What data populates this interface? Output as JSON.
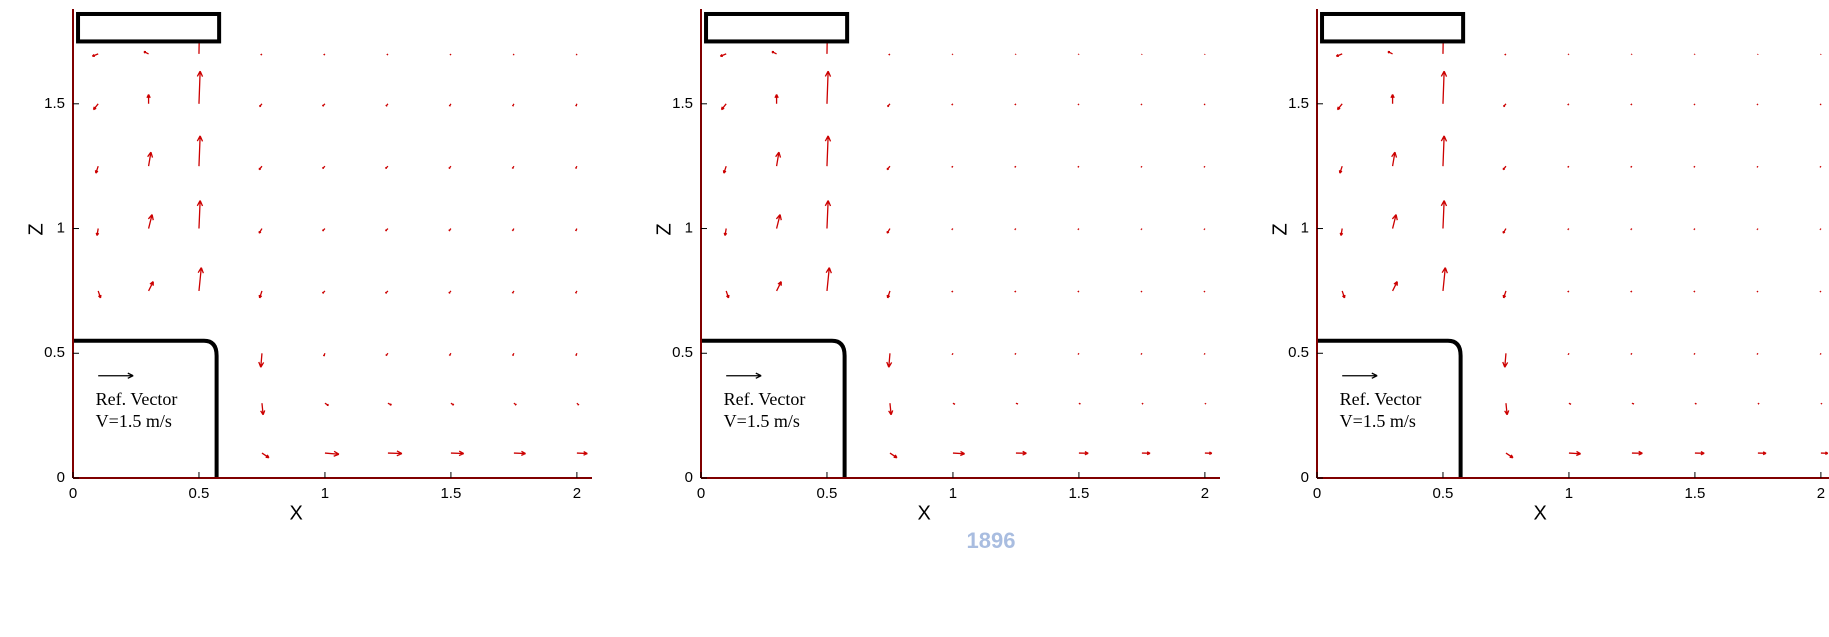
{
  "watermark": "1896",
  "chart_data": [
    {
      "type": "vector",
      "xlabel": "X",
      "ylabel": "Z",
      "color": "#cc0000",
      "xlim": [
        0,
        2.06
      ],
      "ylim": [
        0,
        1.88
      ],
      "xticks": [
        0,
        0.5,
        1,
        1.5,
        2
      ],
      "yticks": [
        0,
        0.5,
        1,
        1.5
      ],
      "annotations": [
        "Ref. Vector",
        "V=1.5 m/s"
      ],
      "ref_value": 1.5,
      "x": [
        0.1,
        0.3,
        0.5,
        0.75,
        1.0,
        1.25,
        1.5,
        1.75,
        2.0
      ],
      "z": [
        0.1,
        0.3,
        0.5,
        0.75,
        1.0,
        1.25,
        1.5,
        1.7
      ],
      "u": [
        [
          null,
          null,
          null,
          0.3,
          0.6,
          0.6,
          0.55,
          0.5,
          0.45
        ],
        [
          null,
          null,
          null,
          0.05,
          0.15,
          0.15,
          0.12,
          0.1,
          0.08
        ],
        [
          null,
          null,
          null,
          -0.05,
          -0.05,
          -0.08,
          -0.06,
          -0.05,
          -0.04
        ],
        [
          0.1,
          0.2,
          0.1,
          -0.1,
          -0.1,
          -0.1,
          -0.08,
          -0.06,
          -0.05
        ],
        [
          -0.05,
          0.15,
          0.05,
          -0.12,
          -0.1,
          -0.1,
          -0.08,
          -0.06,
          -0.05
        ],
        [
          -0.1,
          0.1,
          0.05,
          -0.12,
          -0.1,
          -0.1,
          -0.08,
          -0.06,
          -0.05
        ],
        [
          -0.2,
          0,
          0.05,
          -0.1,
          -0.1,
          -0.08,
          -0.06,
          -0.05,
          -0.04
        ],
        [
          -0.25,
          -0.2,
          0.02,
          -0.05,
          -0.05,
          -0.04,
          -0.03,
          -0.02,
          -0.02
        ]
      ],
      "w": [
        [
          null,
          null,
          null,
          -0.2,
          -0.05,
          -0.02,
          -0.02,
          -0.02,
          -0.02
        ],
        [
          null,
          null,
          null,
          -0.5,
          -0.1,
          -0.08,
          -0.08,
          -0.08,
          -0.08
        ],
        [
          null,
          null,
          null,
          -0.6,
          -0.12,
          -0.1,
          -0.1,
          -0.1,
          -0.1
        ],
        [
          -0.3,
          0.4,
          1.0,
          -0.3,
          -0.1,
          -0.1,
          -0.1,
          -0.1,
          -0.1
        ],
        [
          -0.3,
          0.6,
          1.2,
          -0.2,
          -0.1,
          -0.1,
          -0.1,
          -0.1,
          -0.1
        ],
        [
          -0.3,
          0.6,
          1.3,
          -0.15,
          -0.1,
          -0.1,
          -0.1,
          -0.1,
          -0.1
        ],
        [
          -0.25,
          0.4,
          1.4,
          -0.12,
          -0.1,
          -0.1,
          -0.1,
          -0.1,
          -0.1
        ],
        [
          -0.1,
          0.1,
          1.2,
          -0.05,
          -0.05,
          -0.05,
          -0.05,
          -0.05,
          -0.05
        ]
      ]
    },
    {
      "type": "vector",
      "xlabel": "X",
      "ylabel": "Z",
      "color": "#cc0000",
      "xlim": [
        0,
        2.06
      ],
      "ylim": [
        0,
        1.88
      ],
      "xticks": [
        0,
        0.5,
        1,
        1.5,
        2
      ],
      "yticks": [
        0,
        0.5,
        1,
        1.5
      ],
      "annotations": [
        "Ref. Vector",
        "V=1.5 m/s"
      ],
      "ref_value": 1.5,
      "x": [
        0.1,
        0.3,
        0.5,
        0.75,
        1.0,
        1.25,
        1.5,
        1.75,
        2.0
      ],
      "z": [
        0.1,
        0.3,
        0.5,
        0.75,
        1.0,
        1.25,
        1.5,
        1.7
      ],
      "u": [
        [
          null,
          null,
          null,
          0.3,
          0.5,
          0.45,
          0.4,
          0.35,
          0.3
        ],
        [
          null,
          null,
          null,
          0.05,
          0.08,
          0.08,
          0.06,
          0.05,
          0.04
        ],
        [
          null,
          null,
          null,
          -0.05,
          -0.03,
          -0.04,
          -0.03,
          -0.03,
          -0.02
        ],
        [
          0.1,
          0.2,
          0.1,
          -0.1,
          -0.05,
          -0.05,
          -0.04,
          -0.03,
          -0.03
        ],
        [
          -0.05,
          0.15,
          0.05,
          -0.12,
          -0.05,
          -0.05,
          -0.04,
          -0.03,
          -0.03
        ],
        [
          -0.1,
          0.1,
          0.05,
          -0.12,
          -0.05,
          -0.05,
          -0.04,
          -0.03,
          -0.03
        ],
        [
          -0.2,
          0,
          0.05,
          -0.1,
          -0.05,
          -0.04,
          -0.03,
          -0.03,
          -0.02
        ],
        [
          -0.25,
          -0.2,
          0.02,
          -0.05,
          -0.03,
          -0.02,
          -0.02,
          -0.01,
          -0.01
        ]
      ],
      "w": [
        [
          null,
          null,
          null,
          -0.2,
          -0.03,
          -0.01,
          -0.01,
          -0.01,
          -0.01
        ],
        [
          null,
          null,
          null,
          -0.5,
          -0.05,
          -0.04,
          -0.04,
          -0.04,
          -0.04
        ],
        [
          null,
          null,
          null,
          -0.6,
          -0.06,
          -0.05,
          -0.05,
          -0.05,
          -0.05
        ],
        [
          -0.3,
          0.4,
          1.0,
          -0.3,
          -0.05,
          -0.05,
          -0.05,
          -0.05,
          -0.05
        ],
        [
          -0.3,
          0.6,
          1.2,
          -0.2,
          -0.05,
          -0.05,
          -0.05,
          -0.05,
          -0.05
        ],
        [
          -0.3,
          0.6,
          1.3,
          -0.15,
          -0.05,
          -0.05,
          -0.05,
          -0.05,
          -0.05
        ],
        [
          -0.25,
          0.4,
          1.4,
          -0.12,
          -0.05,
          -0.05,
          -0.05,
          -0.05,
          -0.05
        ],
        [
          -0.1,
          0.1,
          1.2,
          -0.05,
          -0.03,
          -0.03,
          -0.03,
          -0.03,
          -0.03
        ]
      ]
    },
    {
      "type": "vector",
      "xlabel": "X",
      "ylabel": "Z",
      "color": "#cc0000",
      "xlim": [
        0,
        2.06
      ],
      "ylim": [
        0,
        1.88
      ],
      "xticks": [
        0,
        0.5,
        1,
        1.5,
        2
      ],
      "yticks": [
        0,
        0.5,
        1,
        1.5
      ],
      "annotations": [
        "Ref. Vector",
        "V=1.5 m/s"
      ],
      "ref_value": 1.5,
      "x": [
        0.1,
        0.3,
        0.5,
        0.75,
        1.0,
        1.25,
        1.5,
        1.75,
        2.0
      ],
      "z": [
        0.1,
        0.3,
        0.5,
        0.75,
        1.0,
        1.25,
        1.5,
        1.7
      ],
      "u": [
        [
          null,
          null,
          null,
          0.3,
          0.5,
          0.45,
          0.4,
          0.35,
          0.3
        ],
        [
          null,
          null,
          null,
          0.05,
          0.08,
          0.08,
          0.06,
          0.05,
          0.04
        ],
        [
          null,
          null,
          null,
          -0.05,
          -0.03,
          -0.04,
          -0.03,
          -0.03,
          -0.02
        ],
        [
          0.1,
          0.2,
          0.1,
          -0.1,
          -0.05,
          -0.05,
          -0.04,
          -0.03,
          -0.03
        ],
        [
          -0.05,
          0.15,
          0.05,
          -0.12,
          -0.05,
          -0.05,
          -0.04,
          -0.03,
          -0.03
        ],
        [
          -0.1,
          0.1,
          0.05,
          -0.12,
          -0.05,
          -0.05,
          -0.04,
          -0.03,
          -0.03
        ],
        [
          -0.2,
          0,
          0.05,
          -0.1,
          -0.05,
          -0.04,
          -0.03,
          -0.03,
          -0.02
        ],
        [
          -0.25,
          -0.2,
          0.02,
          -0.05,
          -0.03,
          -0.02,
          -0.02,
          -0.01,
          -0.01
        ]
      ],
      "w": [
        [
          null,
          null,
          null,
          -0.2,
          -0.03,
          -0.01,
          -0.01,
          -0.01,
          -0.01
        ],
        [
          null,
          null,
          null,
          -0.5,
          -0.05,
          -0.04,
          -0.04,
          -0.04,
          -0.04
        ],
        [
          null,
          null,
          null,
          -0.6,
          -0.06,
          -0.05,
          -0.05,
          -0.05,
          -0.05
        ],
        [
          -0.3,
          0.4,
          1.0,
          -0.3,
          -0.05,
          -0.05,
          -0.05,
          -0.05,
          -0.05
        ],
        [
          -0.3,
          0.6,
          1.2,
          -0.2,
          -0.05,
          -0.05,
          -0.05,
          -0.05,
          -0.05
        ],
        [
          -0.3,
          0.6,
          1.3,
          -0.15,
          -0.05,
          -0.05,
          -0.05,
          -0.05,
          -0.05
        ],
        [
          -0.25,
          0.4,
          1.4,
          -0.12,
          -0.05,
          -0.05,
          -0.05,
          -0.05,
          -0.05
        ],
        [
          -0.1,
          0.1,
          1.2,
          -0.05,
          -0.03,
          -0.03,
          -0.03,
          -0.03,
          -0.03
        ]
      ]
    }
  ]
}
